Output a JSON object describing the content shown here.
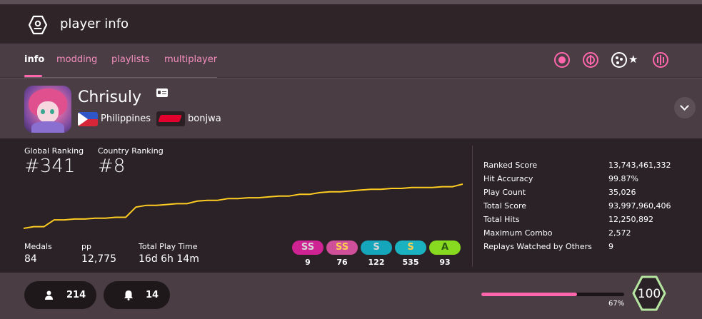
{
  "header": {
    "title": "player info",
    "icon": "user-hexagon-icon"
  },
  "tabs": [
    {
      "label": "info",
      "active": true
    },
    {
      "label": "modding"
    },
    {
      "label": "playlists"
    },
    {
      "label": "multiplayer"
    }
  ],
  "modes": [
    "osu-mode-icon",
    "taiko-mode-icon",
    "catch-mode-icon",
    "mania-mode-icon"
  ],
  "profile": {
    "username": "Chrisuly",
    "country": "Philippines",
    "team": "bonjwa"
  },
  "ranking": {
    "global_label": "Global Ranking",
    "global_value": "#341",
    "country_label": "Country Ranking",
    "country_value": "#8"
  },
  "chart_data": {
    "type": "line",
    "series": [
      {
        "values": [
          390,
          388,
          388,
          380,
          380,
          379,
          379,
          378,
          378,
          377,
          377,
          365,
          363,
          363,
          362,
          361,
          361,
          358,
          357,
          357,
          355,
          355,
          354,
          354,
          353,
          352,
          352,
          350,
          350,
          348,
          347,
          347,
          346,
          345,
          344,
          344,
          343,
          343,
          342,
          342,
          342,
          341,
          341,
          338
        ]
      }
    ],
    "color": "#ffcc22"
  },
  "summary": {
    "medals_label": "Medals",
    "medals": "84",
    "pp_label": "pp",
    "pp": "12,775",
    "playtime_label": "Total Play Time",
    "playtime": "16d 6h 14m"
  },
  "grades": [
    {
      "label": "SS",
      "count": "9",
      "bg": "#d02393",
      "fg": "#d6d6d6"
    },
    {
      "label": "SS",
      "count": "76",
      "bg": "#d04f9a",
      "fg": "#ffd050"
    },
    {
      "label": "S",
      "count": "122",
      "bg": "#16a6bc",
      "fg": "#d6d6d6"
    },
    {
      "label": "S",
      "count": "535",
      "bg": "#1ab2c0",
      "fg": "#ffd050"
    },
    {
      "label": "A",
      "count": "93",
      "bg": "#88da20",
      "fg": "#2a5a10"
    }
  ],
  "details": [
    {
      "label": "Ranked Score",
      "value": "13,743,461,332"
    },
    {
      "label": "Hit Accuracy",
      "value": "99.87%"
    },
    {
      "label": "Play Count",
      "value": "35,026"
    },
    {
      "label": "Total Score",
      "value": "93,997,960,406"
    },
    {
      "label": "Total Hits",
      "value": "12,250,892"
    },
    {
      "label": "Maximum Combo",
      "value": "2,572"
    },
    {
      "label": "Replays Watched by Others",
      "value": "9"
    }
  ],
  "footer": {
    "followers": "214",
    "subscribers": "14",
    "level_progress": 67,
    "level_progress_label": "67%",
    "level": "100"
  }
}
